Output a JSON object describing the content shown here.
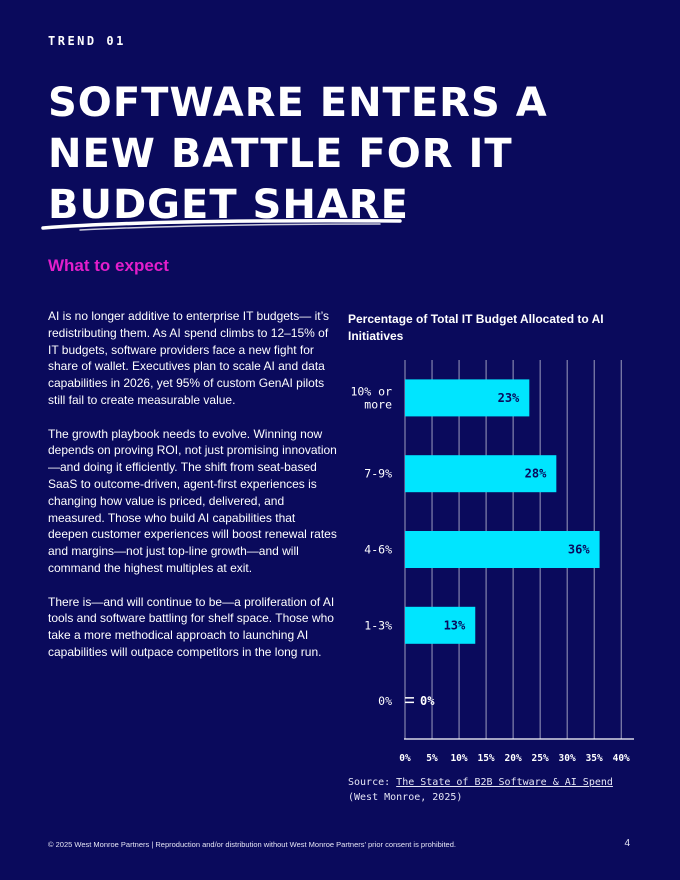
{
  "eyebrow": "TREND 01",
  "title": {
    "line1": "SOFTWARE ENTERS A",
    "line2": "NEW BATTLE FOR IT",
    "line3": "BUDGET SHARE"
  },
  "subhead": "What to expect",
  "body": {
    "p1": "AI is no longer additive to enterprise IT budgets— it’s redistributing them. As AI spend climbs to 12–15% of IT budgets, software providers face a new fight for share of wallet. Executives plan to scale AI and data capabilities in 2026, yet 95% of custom GenAI pilots still fail to create measurable value.",
    "p2": "The growth playbook needs to evolve. Winning now depends on proving ROI, not just promising innovation—and doing it efficiently. The shift from seat-based SaaS to outcome-driven, agent-first experiences is changing how value is priced, delivered, and measured. Those who build AI capabilities that deepen customer experiences will boost renewal rates and margins—not just top-line growth—and will command the highest multiples at exit.",
    "p3": "There is—and will continue to be—a proliferation of AI tools and software battling for shelf space. Those who take a more methodical approach to launching AI capabilities will outpace competitors in the long run."
  },
  "chart_data": {
    "type": "bar",
    "orientation": "horizontal",
    "title": "Percentage of Total IT Budget Allocated to AI Initiatives",
    "categories": [
      [
        "10% or",
        "more"
      ],
      [
        "7-9%"
      ],
      [
        "4-6%"
      ],
      [
        "1-3%"
      ],
      [
        "0%"
      ]
    ],
    "values": [
      23,
      28,
      36,
      13,
      0
    ],
    "value_labels": [
      "23%",
      "28%",
      "36%",
      "13%",
      "0%"
    ],
    "xticks": [
      "0%",
      "5%",
      "10%",
      "15%",
      "20%",
      "25%",
      "30%",
      "35%",
      "40%"
    ],
    "xlim": [
      0,
      42
    ],
    "bar_color": "#00e5ff",
    "grid": true
  },
  "source": {
    "prefix": "Source: ",
    "link": "The State of B2B Software & AI Spend",
    "suffix": "(West Monroe, 2025)"
  },
  "footer": "© 2025 West Monroe Partners  |  Reproduction and/or distribution without West Monroe Partners’ prior consent is prohibited.",
  "page_number": "4"
}
